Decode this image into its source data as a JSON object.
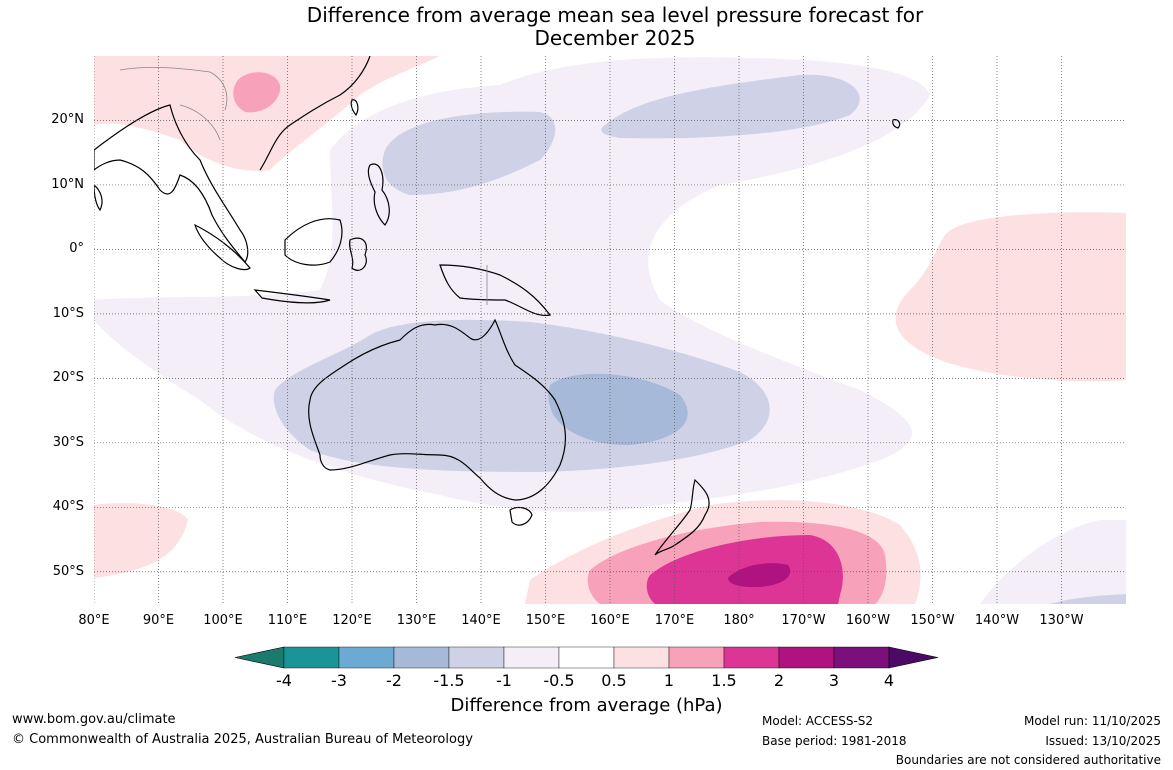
{
  "title_line1": "Difference from average mean sea level pressure forecast for",
  "title_line2": "December 2025",
  "map": {
    "lat_labels": [
      "20°N",
      "10°N",
      "0°",
      "10°S",
      "20°S",
      "30°S",
      "40°S",
      "50°S"
    ],
    "lon_labels": [
      "80°E",
      "90°E",
      "100°E",
      "110°E",
      "120°E",
      "130°E",
      "140°E",
      "150°E",
      "160°E",
      "170°E",
      "180°",
      "170°W",
      "160°W",
      "150°W",
      "140°W",
      "130°W"
    ],
    "lon_range": [
      80,
      240
    ],
    "lat_range": [
      -55,
      30
    ],
    "colors": {
      "land_outline": "#000000",
      "border": "#888888",
      "grid": "#555555"
    }
  },
  "colorbar": {
    "ticks": [
      "-4",
      "-3",
      "-2",
      "-1.5",
      "-1",
      "-0.5",
      "0.5",
      "1",
      "1.5",
      "2",
      "3",
      "4"
    ],
    "colors": [
      "#1a7a6e",
      "#1a9597",
      "#6baad3",
      "#a6b9d8",
      "#cfd2e6",
      "#f3eef7",
      "#ffffff",
      "#fde0e1",
      "#f7a1bb",
      "#dc3596",
      "#b0137f",
      "#7c0f7c",
      "#4c0a67"
    ],
    "label": "Difference from average (hPa)"
  },
  "footer": {
    "url": "www.bom.gov.au/climate",
    "copyright": "© Commonwealth of Australia 2025, Australian Bureau of Meteorology",
    "model": "Model: ACCESS-S2",
    "base_period": "Base period: 1981-2018",
    "model_run": "Model run: 11/10/2025",
    "issued": "Issued: 13/10/2025",
    "disclaimer": "Boundaries are not considered authoritative"
  }
}
